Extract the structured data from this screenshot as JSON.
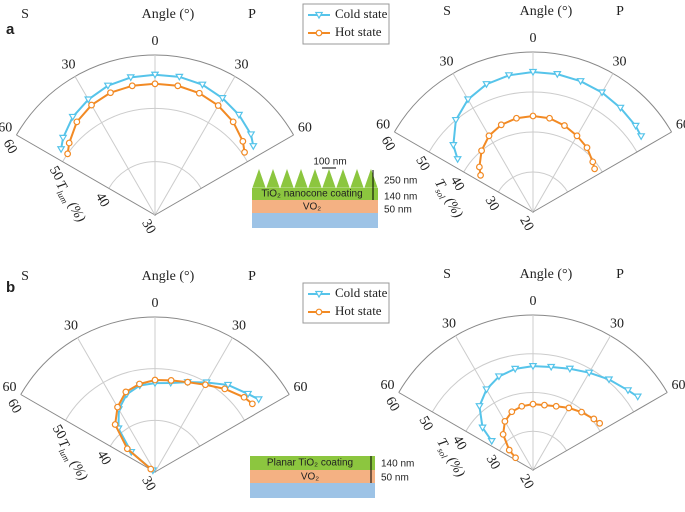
{
  "panel_labels": [
    "a",
    "b"
  ],
  "chart_data": [
    {
      "type": "polar",
      "angle_label": "Angle (°)",
      "left_label": "S",
      "right_label": "P",
      "r_label": {
        "symbol": "T",
        "subscript": "lum",
        "unit": "(%)"
      },
      "thetalim": [
        -60,
        60
      ],
      "thetaticks": [
        {
          "value": -60,
          "label": "60"
        },
        {
          "value": -30,
          "label": "30"
        },
        0,
        {
          "value": 30,
          "label": "30"
        },
        60
      ],
      "rlim": [
        30,
        60
      ],
      "rticks": [
        30,
        40,
        50,
        60
      ],
      "legend": true,
      "x": [
        -55,
        -50,
        -40,
        -30,
        -20,
        -10,
        0,
        10,
        20,
        30,
        40,
        50,
        55
      ],
      "series": [
        {
          "name": "Cold state",
          "color": "#56c4ea",
          "marker": "triangle-down",
          "values": [
            51.5,
            52.5,
            54,
            55,
            55.8,
            56.2,
            56.3,
            56.3,
            56,
            55.3,
            54.5,
            53.5,
            52.5
          ]
        },
        {
          "name": "Hot state",
          "color": "#f28a24",
          "marker": "circle",
          "values": [
            50,
            51,
            52.8,
            53.8,
            54.4,
            54.6,
            54.6,
            54.6,
            54.3,
            53.7,
            52.8,
            51.5,
            50.5
          ]
        }
      ]
    },
    {
      "type": "polar",
      "angle_label": "Angle (°)",
      "left_label": "S",
      "right_label": "P",
      "r_label": {
        "symbol": "T",
        "subscript": "sol",
        "unit": "(%)"
      },
      "thetalim": [
        -60,
        60
      ],
      "thetaticks": [
        {
          "value": -60,
          "label": "60"
        },
        {
          "value": -30,
          "label": "30"
        },
        0,
        {
          "value": 30,
          "label": "30"
        },
        60
      ],
      "rlim": [
        20,
        60
      ],
      "rticks": [
        20,
        30,
        40,
        50,
        60
      ],
      "legend": false,
      "x": [
        -55,
        -50,
        -40,
        -30,
        -20,
        -10,
        0,
        10,
        20,
        30,
        40,
        50,
        55
      ],
      "series": [
        {
          "color": "#56c4ea",
          "marker": "triangle-down",
          "values": [
            43,
            46,
            50,
            52.5,
            54,
            54.7,
            55,
            55,
            54.8,
            54.5,
            54,
            53.5,
            53
          ]
        },
        {
          "color": "#f28a24",
          "marker": "circle",
          "values": [
            36,
            37.5,
            40,
            42,
            43.2,
            43.8,
            44,
            43.8,
            43,
            42,
            41,
            39.5,
            38.8
          ]
        }
      ]
    },
    {
      "type": "polar",
      "angle_label": "Angle (°)",
      "left_label": "S",
      "right_label": "P",
      "r_label": {
        "symbol": "T",
        "subscript": "lum",
        "unit": "(%)"
      },
      "thetalim": [
        -60,
        60
      ],
      "thetaticks": [
        {
          "value": -60,
          "label": "60"
        },
        {
          "value": -30,
          "label": "30"
        },
        0,
        {
          "value": 30,
          "label": "30"
        },
        60
      ],
      "rlim": [
        30,
        60
      ],
      "rticks": [
        30,
        40,
        50,
        60
      ],
      "legend": true,
      "x": [
        -55,
        -50,
        -40,
        -30,
        -20,
        -10,
        0,
        10,
        20,
        30,
        40,
        50,
        55
      ],
      "series": [
        {
          "name": "Cold state",
          "color": "#56c4ea",
          "marker": "triangle-down",
          "values": [
            30.5,
            36,
            41,
            44,
            46,
            47,
            47.2,
            47.5,
            48.5,
            50,
            52,
            53.5,
            54.5
          ]
        },
        {
          "name": "Hot state",
          "color": "#f28a24",
          "marker": "circle",
          "values": [
            31,
            37,
            42,
            44.5,
            46.5,
            47.3,
            47.8,
            48,
            48.5,
            49.5,
            51,
            52.5,
            53
          ]
        }
      ]
    },
    {
      "type": "polar",
      "angle_label": "Angle (°)",
      "left_label": "S",
      "right_label": "P",
      "r_label": {
        "symbol": "T",
        "subscript": "sol",
        "unit": "(%)"
      },
      "thetalim": [
        -60,
        60
      ],
      "thetaticks": [
        {
          "value": -60,
          "label": "60"
        },
        {
          "value": -30,
          "label": "30"
        },
        0,
        {
          "value": 30,
          "label": "30"
        },
        60
      ],
      "rlim": [
        20,
        60
      ],
      "rticks": [
        20,
        30,
        40,
        50,
        60
      ],
      "legend": false,
      "x": [
        -55,
        -50,
        -40,
        -30,
        -20,
        -10,
        0,
        10,
        20,
        30,
        40,
        50,
        55
      ],
      "series": [
        {
          "color": "#56c4ea",
          "marker": "triangle-down",
          "values": [
            33,
            37,
            41.5,
            44,
            45.7,
            46.5,
            46.8,
            47,
            47.8,
            49,
            50.5,
            52,
            53
          ]
        },
        {
          "color": "#f28a24",
          "marker": "circle",
          "values": [
            25.5,
            28,
            32,
            34.5,
            36,
            36.7,
            37,
            37,
            37.5,
            38.5,
            39.5,
            40.5,
            41
          ]
        }
      ]
    }
  ],
  "insets": [
    {
      "coating": "TiO₂ nanocone coating",
      "layer": "VO₂",
      "cone_width": "100 nm",
      "cone_height": "250 nm",
      "coating_thickness": "140 nm",
      "vo2_thickness": "50 nm"
    },
    {
      "coating": "Planar TiO₂ coating",
      "layer": "VO₂",
      "coating_thickness": "140 nm",
      "vo2_thickness": "50 nm"
    }
  ]
}
